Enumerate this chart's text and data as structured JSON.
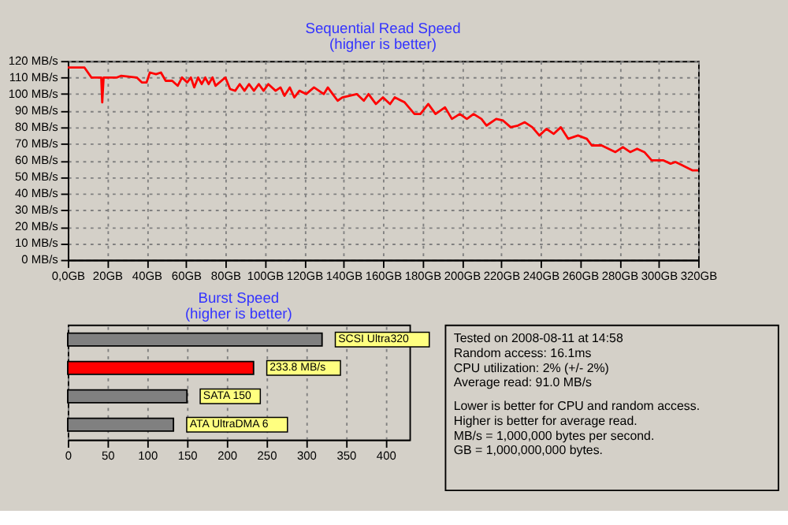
{
  "chart_data": [
    {
      "type": "line",
      "title": "Sequential Read Speed",
      "subtitle": "(higher is better)",
      "x": [
        0,
        8.5,
        12,
        17,
        17.5,
        18.2,
        25,
        27,
        35,
        37.6,
        40,
        41.7,
        44.8,
        47.3,
        49.7,
        53,
        55.8,
        58,
        60.6,
        62.5,
        64.2,
        66.2,
        68,
        69.8,
        71.5,
        73.5,
        75,
        80,
        82.4,
        85,
        87.3,
        89.7,
        92,
        94.5,
        97,
        99.4,
        101.8,
        105.5,
        108,
        110,
        112.7,
        115,
        117.6,
        121,
        125,
        130,
        132,
        134.5,
        137,
        139.4,
        146.7,
        150.3,
        152.7,
        156.4,
        160,
        163.6,
        166,
        171,
        176,
        179,
        183,
        186.7,
        191.5,
        195,
        199,
        202.6,
        206,
        210,
        212.6,
        217.5,
        221,
        224.8,
        228.5,
        232,
        235.8,
        239.4,
        243,
        246.7,
        250.3,
        254,
        259,
        263.5,
        266,
        271,
        274.5,
        278,
        281.8,
        285.5,
        289,
        292.7,
        296.4,
        302.4,
        306,
        308.5,
        312,
        317,
        320
      ],
      "series": [
        {
          "color": "#ff0000",
          "values": [
            116,
            116,
            110,
            110,
            95,
            110,
            110,
            111,
            110,
            107,
            107,
            113,
            112,
            113,
            108,
            108,
            105,
            110,
            107,
            110,
            104,
            110,
            106,
            110,
            106,
            110,
            105,
            110,
            103,
            102,
            106,
            102,
            106,
            102,
            106,
            102,
            106,
            102,
            104,
            99,
            104,
            98,
            102,
            100,
            104,
            100,
            104,
            100,
            96,
            98,
            100,
            96,
            100,
            94,
            98,
            94,
            98,
            95,
            88,
            88,
            94,
            88,
            92,
            85,
            88,
            85,
            88,
            85,
            81,
            85,
            84,
            80,
            81,
            83,
            80,
            75,
            79,
            76,
            80,
            73,
            75,
            73,
            69,
            69,
            67,
            65,
            68,
            65,
            67,
            65,
            60,
            60,
            58,
            59,
            57,
            54,
            54
          ]
        }
      ],
      "xlim": [
        0,
        320
      ],
      "xticks": [
        {
          "value": 0,
          "label": "0,0GB"
        },
        {
          "value": 20,
          "label": "20GB"
        },
        {
          "value": 40,
          "label": "40GB"
        },
        {
          "value": 60,
          "label": "60GB"
        },
        {
          "value": 80,
          "label": "80GB"
        },
        {
          "value": 100,
          "label": "100GB"
        },
        {
          "value": 120,
          "label": "120GB"
        },
        {
          "value": 140,
          "label": "140GB"
        },
        {
          "value": 160,
          "label": "160GB"
        },
        {
          "value": 180,
          "label": "180GB"
        },
        {
          "value": 200,
          "label": "200GB"
        },
        {
          "value": 220,
          "label": "220GB"
        },
        {
          "value": 240,
          "label": "240GB"
        },
        {
          "value": 260,
          "label": "260GB"
        },
        {
          "value": 280,
          "label": "280GB"
        },
        {
          "value": 300,
          "label": "300GB"
        },
        {
          "value": 320,
          "label": "320GB"
        }
      ],
      "ylim": [
        0,
        120
      ],
      "yticks": [
        {
          "value": 0,
          "label": "0 MB/s"
        },
        {
          "value": 10,
          "label": "10 MB/s"
        },
        {
          "value": 20,
          "label": "20 MB/s"
        },
        {
          "value": 30,
          "label": "30 MB/s"
        },
        {
          "value": 40,
          "label": "40 MB/s"
        },
        {
          "value": 50,
          "label": "50 MB/s"
        },
        {
          "value": 60,
          "label": "60 MB/s"
        },
        {
          "value": 70,
          "label": "70 MB/s"
        },
        {
          "value": 80,
          "label": "80 MB/s"
        },
        {
          "value": 90,
          "label": "90 MB/s"
        },
        {
          "value": 100,
          "label": "100 MB/s"
        },
        {
          "value": 110,
          "label": "110 MB/s"
        },
        {
          "value": 120,
          "label": "120 MB/s"
        }
      ],
      "grid": true,
      "legend": false
    },
    {
      "type": "bar",
      "orientation": "horizontal",
      "title": "Burst Speed",
      "subtitle": "(higher is better)",
      "categories": [
        "SCSI Ultra320",
        null,
        "SATA 150",
        "ATA UltraDMA 6"
      ],
      "values": [
        320,
        233.8,
        150,
        133
      ],
      "colors": [
        "#808080",
        "#ff0000",
        "#808080",
        "#808080"
      ],
      "value_labels": [
        null,
        "233.8 MB/s",
        null,
        null
      ],
      "xlim": [
        0,
        430
      ],
      "xticks": [
        0,
        50,
        100,
        150,
        200,
        250,
        300,
        350,
        400
      ],
      "grid": "x",
      "legend": false
    },
    {
      "type": "other",
      "annotations": [
        "Tested on 2008-08-11 at 14:58",
        "Random access: 16.1ms",
        "CPU utilization: 2% (+/- 2%)",
        "Average read: 91.0 MB/s",
        "Lower is better for CPU and random access.",
        "Higher is better for average read.",
        "MB/s = 1,000,000 bytes per second.",
        "GB = 1,000,000,000 bytes."
      ]
    }
  ]
}
